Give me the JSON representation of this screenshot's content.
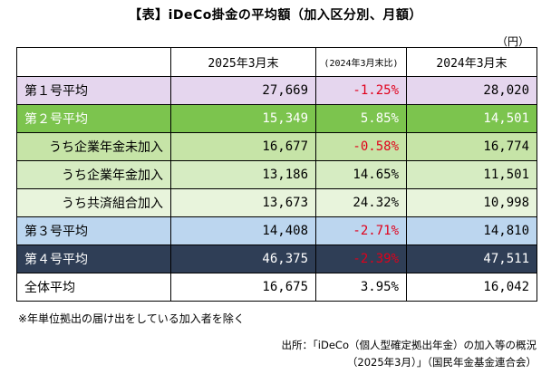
{
  "title": "【表】iDeCo掛金の平均額（加入区分別、月額）",
  "unit": "（円）",
  "table": {
    "headers": [
      "",
      "2025年3月末",
      "(2024年3月末比)",
      "2024年3月末"
    ],
    "rows": [
      {
        "label": "第１号平均",
        "v2025": "27,669",
        "change": "-1.25%",
        "v2024": "28,020"
      },
      {
        "label": "第２号平均",
        "v2025": "15,349",
        "change": "5.85%",
        "v2024": "14,501"
      },
      {
        "label": "うち企業年金未加入",
        "v2025": "16,677",
        "change": "-0.58%",
        "v2024": "16,774"
      },
      {
        "label": "うち企業年金加入",
        "v2025": "13,186",
        "change": "14.65%",
        "v2024": "11,501"
      },
      {
        "label": "うち共済組合加入",
        "v2025": "13,673",
        "change": "24.32%",
        "v2024": "10,998"
      },
      {
        "label": "第３号平均",
        "v2025": "14,408",
        "change": "-2.71%",
        "v2024": "14,810"
      },
      {
        "label": "第４号平均",
        "v2025": "46,375",
        "change": "-2.39%",
        "v2024": "47,511"
      },
      {
        "label": "全体平均",
        "v2025": "16,675",
        "change": "3.95%",
        "v2024": "16,042"
      }
    ]
  },
  "note": "※年単位拠出の届け出をしている加入者を除く",
  "source_line1": "出所：「iDeCo（個人型確定拠出年金）の加入等の概況",
  "source_line2": "（2025年3月）」（国民年金基金連合会）",
  "colors": {
    "row1_purple": "#e5d6ee",
    "row2_green": "#7cc44e",
    "row3_lightgreen": "#c6e4a7",
    "row4_lightgreen": "#d6ecc2",
    "row5_lightgreen": "#e8f4dc",
    "row6_blue": "#bcd6ef",
    "row7_navy": "#2f3e56",
    "negative_red": "#e0001b"
  }
}
